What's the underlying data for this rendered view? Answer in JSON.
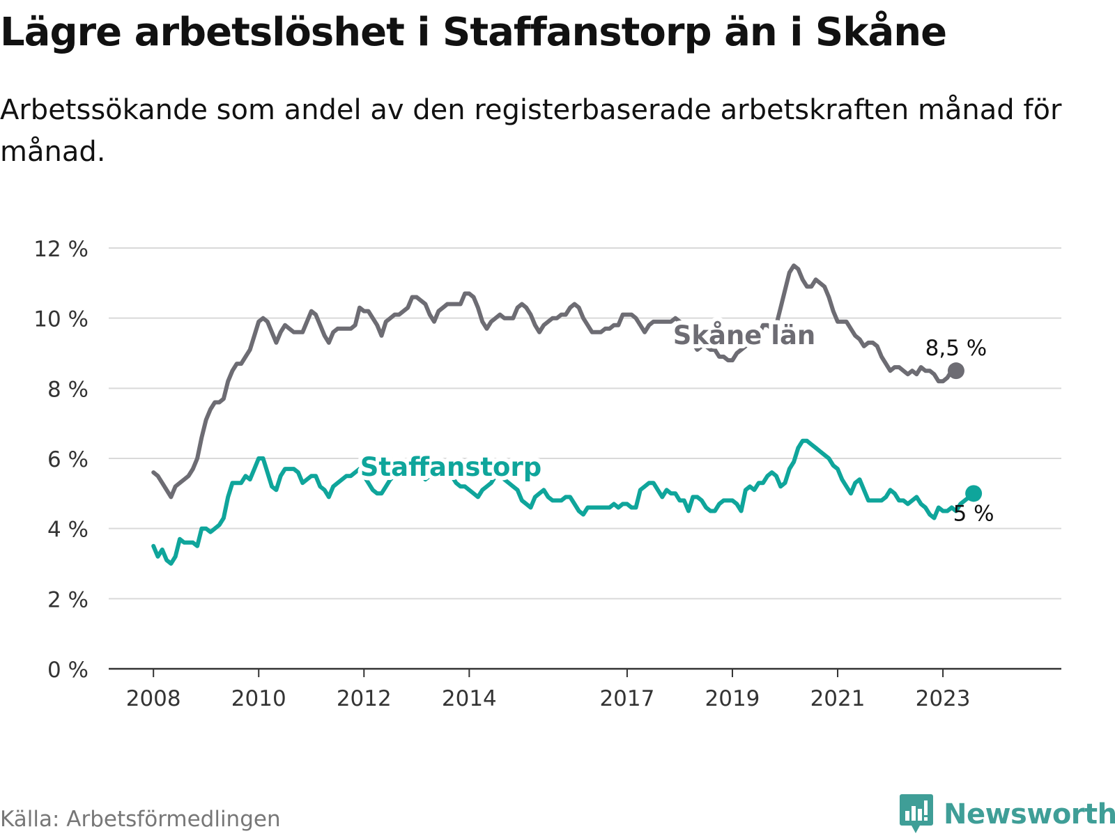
{
  "title": "Lägre arbetslöshet i Staffanstorp än i Skåne",
  "subtitle": "Arbetssökande som andel av den registerbaserade arbetskraften månad för månad.",
  "source": "Källa: Arbetsförmedlingen",
  "brand": {
    "name": "Newsworthy",
    "icon": "newsworthy-logo-icon",
    "color": "#3f9e97"
  },
  "chart_data": {
    "type": "line",
    "title": "Lägre arbetslöshet i Staffanstorp än i Skåne",
    "xlabel": "",
    "ylabel": "",
    "x_start": 2008.0,
    "x_step": 0.0833333,
    "xlim": [
      2007.15,
      2025.25
    ],
    "ylim": [
      0,
      12
    ],
    "yticks": [
      0,
      2,
      4,
      6,
      8,
      10,
      12
    ],
    "ytick_labels": [
      "0 %",
      "2 %",
      "4 %",
      "6 %",
      "8 %",
      "10 %",
      "12 %"
    ],
    "xticks": [
      2008,
      2010,
      2012,
      2014,
      2017,
      2019,
      2021,
      2023
    ],
    "xtick_labels": [
      "2008",
      "2010",
      "2012",
      "2014",
      "2017",
      "2019",
      "2021",
      "2023"
    ],
    "grid": true,
    "series": [
      {
        "name": "Skåne län",
        "label": "Skåne län",
        "color": "#6d6c73",
        "end_label": "8,5 %",
        "values": [
          5.6,
          5.5,
          5.3,
          5.1,
          4.9,
          5.2,
          5.3,
          5.4,
          5.5,
          5.7,
          6.0,
          6.6,
          7.1,
          7.4,
          7.6,
          7.6,
          7.7,
          8.2,
          8.5,
          8.7,
          8.7,
          8.9,
          9.1,
          9.5,
          9.9,
          10.0,
          9.9,
          9.6,
          9.3,
          9.6,
          9.8,
          9.7,
          9.6,
          9.6,
          9.6,
          9.9,
          10.2,
          10.1,
          9.8,
          9.5,
          9.3,
          9.6,
          9.7,
          9.7,
          9.7,
          9.7,
          9.8,
          10.3,
          10.2,
          10.2,
          10.0,
          9.8,
          9.5,
          9.9,
          10.0,
          10.1,
          10.1,
          10.2,
          10.3,
          10.6,
          10.6,
          10.5,
          10.4,
          10.1,
          9.9,
          10.2,
          10.3,
          10.4,
          10.4,
          10.4,
          10.4,
          10.7,
          10.7,
          10.6,
          10.3,
          9.9,
          9.7,
          9.9,
          10.0,
          10.1,
          10.0,
          10.0,
          10.0,
          10.3,
          10.4,
          10.3,
          10.1,
          9.8,
          9.6,
          9.8,
          9.9,
          10.0,
          10.0,
          10.1,
          10.1,
          10.3,
          10.4,
          10.3,
          10.0,
          9.8,
          9.6,
          9.6,
          9.6,
          9.7,
          9.7,
          9.8,
          9.8,
          10.1,
          10.1,
          10.1,
          10.0,
          9.8,
          9.6,
          9.8,
          9.9,
          9.9,
          9.9,
          9.9,
          9.9,
          10.0,
          9.9,
          9.8,
          9.5,
          9.3,
          9.1,
          9.2,
          9.2,
          9.1,
          9.1,
          8.9,
          8.9,
          8.8,
          8.8,
          9.0,
          9.1,
          9.2,
          9.3,
          9.4,
          9.5,
          9.8,
          9.8,
          9.7,
          9.8,
          10.3,
          10.8,
          11.3,
          11.5,
          11.4,
          11.1,
          10.9,
          10.9,
          11.1,
          11.0,
          10.9,
          10.6,
          10.2,
          9.9,
          9.9,
          9.9,
          9.7,
          9.5,
          9.4,
          9.2,
          9.3,
          9.3,
          9.2,
          8.9,
          8.7,
          8.5,
          8.6,
          8.6,
          8.5,
          8.4,
          8.5,
          8.4,
          8.6,
          8.5,
          8.5,
          8.4,
          8.2,
          8.2,
          8.3,
          8.5,
          8.5
        ]
      },
      {
        "name": "Staffanstorp",
        "label": "Staffanstorp",
        "color": "#0fa59b",
        "end_label": "5 %",
        "values": [
          3.5,
          3.2,
          3.4,
          3.1,
          3.0,
          3.2,
          3.7,
          3.6,
          3.6,
          3.6,
          3.5,
          4.0,
          4.0,
          3.9,
          4.0,
          4.1,
          4.3,
          4.9,
          5.3,
          5.3,
          5.3,
          5.5,
          5.4,
          5.7,
          6.0,
          6.0,
          5.6,
          5.2,
          5.1,
          5.5,
          5.7,
          5.7,
          5.7,
          5.6,
          5.3,
          5.4,
          5.5,
          5.5,
          5.2,
          5.1,
          4.9,
          5.2,
          5.3,
          5.4,
          5.5,
          5.5,
          5.6,
          5.7,
          5.5,
          5.3,
          5.1,
          5.0,
          5.0,
          5.2,
          5.4,
          5.5,
          5.6,
          5.7,
          5.8,
          6.0,
          5.8,
          5.6,
          5.4,
          5.5,
          5.6,
          5.8,
          5.8,
          5.7,
          5.5,
          5.3,
          5.2,
          5.2,
          5.1,
          5.0,
          4.9,
          5.1,
          5.2,
          5.3,
          5.5,
          5.6,
          5.4,
          5.3,
          5.2,
          5.1,
          4.8,
          4.7,
          4.6,
          4.9,
          5.0,
          5.1,
          4.9,
          4.8,
          4.8,
          4.8,
          4.9,
          4.9,
          4.7,
          4.5,
          4.4,
          4.6,
          4.6,
          4.6,
          4.6,
          4.6,
          4.6,
          4.7,
          4.6,
          4.7,
          4.7,
          4.6,
          4.6,
          5.1,
          5.2,
          5.3,
          5.3,
          5.1,
          4.9,
          5.1,
          5.0,
          5.0,
          4.8,
          4.8,
          4.5,
          4.9,
          4.9,
          4.8,
          4.6,
          4.5,
          4.5,
          4.7,
          4.8,
          4.8,
          4.8,
          4.7,
          4.5,
          5.1,
          5.2,
          5.1,
          5.3,
          5.3,
          5.5,
          5.6,
          5.5,
          5.2,
          5.3,
          5.7,
          5.9,
          6.3,
          6.5,
          6.5,
          6.4,
          6.3,
          6.2,
          6.1,
          6.0,
          5.8,
          5.7,
          5.4,
          5.2,
          5.0,
          5.3,
          5.4,
          5.1,
          4.8,
          4.8,
          4.8,
          4.8,
          4.9,
          5.1,
          5.0,
          4.8,
          4.8,
          4.7,
          4.8,
          4.9,
          4.7,
          4.6,
          4.4,
          4.3,
          4.6,
          4.5,
          4.5,
          4.6,
          4.5,
          4.7,
          4.8,
          4.9,
          5.0
        ]
      }
    ]
  }
}
